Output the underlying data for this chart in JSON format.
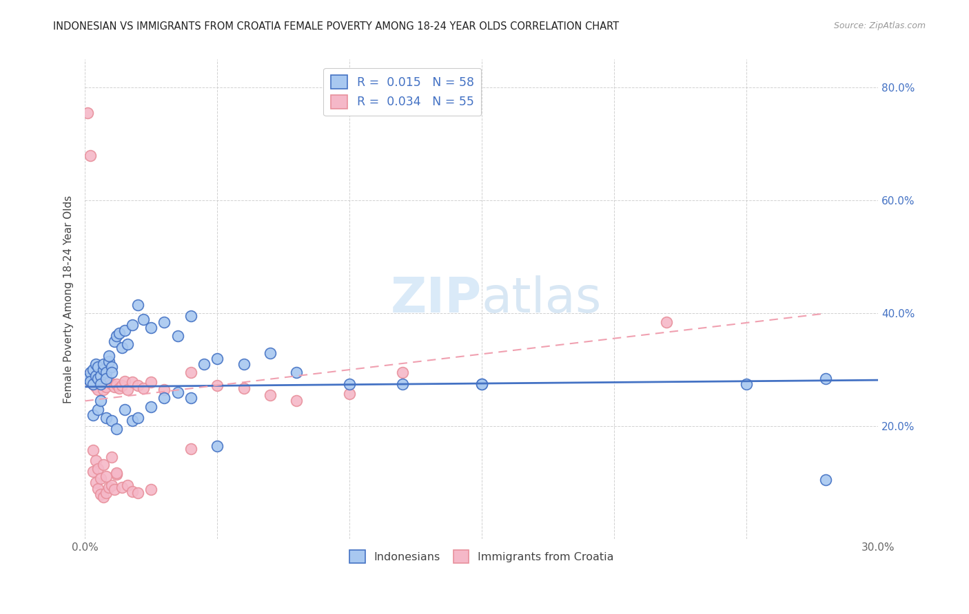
{
  "title": "INDONESIAN VS IMMIGRANTS FROM CROATIA FEMALE POVERTY AMONG 18-24 YEAR OLDS CORRELATION CHART",
  "source": "Source: ZipAtlas.com",
  "ylabel": "Female Poverty Among 18-24 Year Olds",
  "xlim": [
    0.0,
    0.3
  ],
  "ylim": [
    0.0,
    0.85
  ],
  "color_indonesian_fill": "#a8c8f0",
  "color_indonesian_edge": "#4472c4",
  "color_croatia_fill": "#f5b8c8",
  "color_croatia_edge": "#e8909c",
  "color_indonesian_line": "#4472c4",
  "color_croatia_line": "#f0a0b0",
  "watermark_color": "#daeaf8",
  "indo_x": [
    0.001,
    0.002,
    0.002,
    0.003,
    0.003,
    0.004,
    0.004,
    0.005,
    0.005,
    0.006,
    0.006,
    0.007,
    0.007,
    0.008,
    0.008,
    0.009,
    0.009,
    0.01,
    0.01,
    0.011,
    0.012,
    0.013,
    0.014,
    0.015,
    0.016,
    0.018,
    0.02,
    0.022,
    0.025,
    0.03,
    0.035,
    0.04,
    0.045,
    0.05,
    0.06,
    0.07,
    0.08,
    0.1,
    0.12,
    0.15,
    0.003,
    0.005,
    0.006,
    0.008,
    0.01,
    0.012,
    0.015,
    0.018,
    0.02,
    0.025,
    0.03,
    0.035,
    0.04,
    0.05,
    0.15,
    0.25,
    0.28,
    0.28
  ],
  "indo_y": [
    0.285,
    0.295,
    0.28,
    0.3,
    0.275,
    0.29,
    0.31,
    0.285,
    0.305,
    0.29,
    0.275,
    0.3,
    0.31,
    0.295,
    0.285,
    0.315,
    0.325,
    0.305,
    0.295,
    0.35,
    0.36,
    0.365,
    0.34,
    0.37,
    0.345,
    0.38,
    0.415,
    0.39,
    0.375,
    0.385,
    0.36,
    0.395,
    0.31,
    0.32,
    0.31,
    0.33,
    0.295,
    0.275,
    0.275,
    0.275,
    0.22,
    0.23,
    0.245,
    0.215,
    0.21,
    0.195,
    0.23,
    0.21,
    0.215,
    0.235,
    0.25,
    0.26,
    0.25,
    0.165,
    0.275,
    0.275,
    0.285,
    0.105
  ],
  "cro_x": [
    0.001,
    0.001,
    0.002,
    0.002,
    0.003,
    0.003,
    0.004,
    0.004,
    0.005,
    0.005,
    0.006,
    0.006,
    0.007,
    0.007,
    0.008,
    0.008,
    0.009,
    0.009,
    0.01,
    0.01,
    0.011,
    0.011,
    0.012,
    0.012,
    0.013,
    0.014,
    0.015,
    0.016,
    0.018,
    0.02,
    0.022,
    0.025,
    0.03,
    0.04,
    0.05,
    0.06,
    0.07,
    0.08,
    0.1,
    0.12,
    0.003,
    0.004,
    0.005,
    0.006,
    0.007,
    0.008,
    0.01,
    0.012,
    0.014,
    0.016,
    0.018,
    0.02,
    0.025,
    0.04,
    0.22
  ],
  "cro_y": [
    0.755,
    0.29,
    0.68,
    0.28,
    0.275,
    0.12,
    0.27,
    0.1,
    0.265,
    0.09,
    0.28,
    0.08,
    0.265,
    0.075,
    0.27,
    0.082,
    0.28,
    0.092,
    0.275,
    0.095,
    0.27,
    0.088,
    0.275,
    0.115,
    0.268,
    0.272,
    0.28,
    0.265,
    0.278,
    0.272,
    0.268,
    0.278,
    0.265,
    0.295,
    0.272,
    0.268,
    0.255,
    0.245,
    0.258,
    0.295,
    0.158,
    0.14,
    0.125,
    0.108,
    0.132,
    0.112,
    0.145,
    0.118,
    0.092,
    0.095,
    0.085,
    0.082,
    0.088,
    0.16,
    0.385
  ],
  "indo_trend_x": [
    0.0,
    0.3
  ],
  "indo_trend_y": [
    0.27,
    0.282
  ],
  "cro_trend_x": [
    0.0,
    0.28
  ],
  "cro_trend_y": [
    0.245,
    0.4
  ]
}
